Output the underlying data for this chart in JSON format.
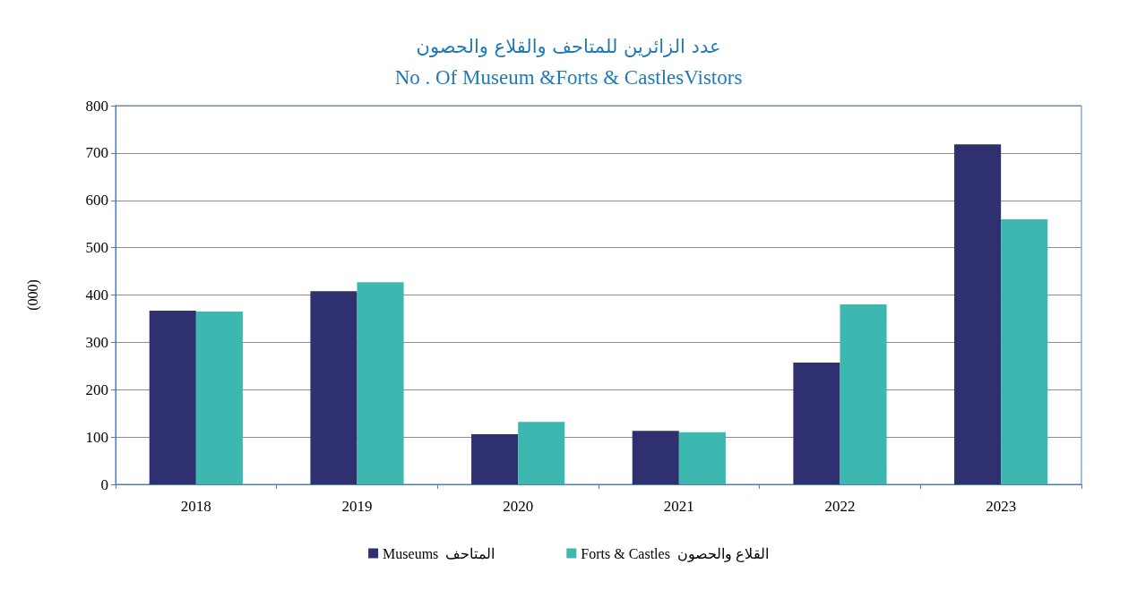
{
  "chart_data": {
    "type": "bar",
    "title": "عدد الزائرين للمتاحف والقلاع والحصون",
    "subtitle": "No . Of Museum &Forts & CastlesVistors",
    "ylabel": "(000)",
    "categories": [
      "2018",
      "2019",
      "2020",
      "2021",
      "2022",
      "2023"
    ],
    "series": [
      {
        "name": "Museums  المتاحف",
        "color": "#2e3070",
        "values": [
          367,
          408,
          106,
          113,
          257,
          718
        ]
      },
      {
        "name": "Forts & Castles  القلاع والحصون",
        "color": "#3db8b0",
        "values": [
          365,
          427,
          132,
          110,
          380,
          560
        ]
      }
    ],
    "ylim": [
      0,
      800
    ],
    "yticks": [
      0,
      100,
      200,
      300,
      400,
      500,
      600,
      700,
      800
    ],
    "grid": "y",
    "legend": "bottom"
  }
}
